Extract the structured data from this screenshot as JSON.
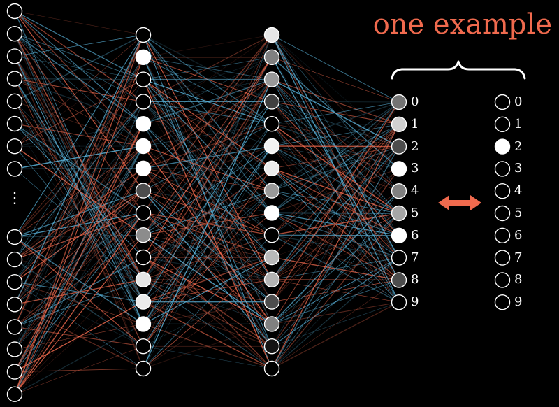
{
  "title": "one example",
  "colors": {
    "background": "#000000",
    "positive_weight": "#5ab4dc",
    "negative_weight": "#f06a4e",
    "title": "#f06a4e",
    "arrow": "#f06a4e",
    "node_stroke": "#ffffff",
    "brace": "#ffffff"
  },
  "network": {
    "input_layer": {
      "visible_nodes_top": 8,
      "visible_nodes_bottom": 8,
      "ellipsis": "⋮"
    },
    "hidden_layer_1": {
      "activations": [
        0.0,
        1.0,
        0.0,
        0.0,
        1.0,
        1.0,
        1.0,
        0.3,
        0.0,
        0.55,
        0.0,
        0.9,
        0.92,
        1.0,
        0.0,
        0.0
      ]
    },
    "hidden_layer_2": {
      "activations": [
        0.9,
        0.5,
        0.6,
        0.25,
        0.0,
        0.95,
        0.92,
        0.6,
        1.0,
        0.0,
        0.72,
        0.7,
        0.3,
        0.5,
        0.08,
        0.0
      ]
    },
    "output_layer": {
      "labels": [
        "0",
        "1",
        "2",
        "3",
        "4",
        "5",
        "6",
        "7",
        "8",
        "9"
      ],
      "activations": [
        0.45,
        0.82,
        0.3,
        1.0,
        0.5,
        0.65,
        1.0,
        0.0,
        0.3,
        0.0
      ]
    },
    "target_layer": {
      "labels": [
        "0",
        "1",
        "2",
        "3",
        "4",
        "5",
        "6",
        "7",
        "8",
        "9"
      ],
      "activations": [
        0,
        0,
        1,
        0,
        0,
        0,
        0,
        0,
        0,
        0
      ]
    }
  },
  "compare_icon": "double-arrow-icon"
}
